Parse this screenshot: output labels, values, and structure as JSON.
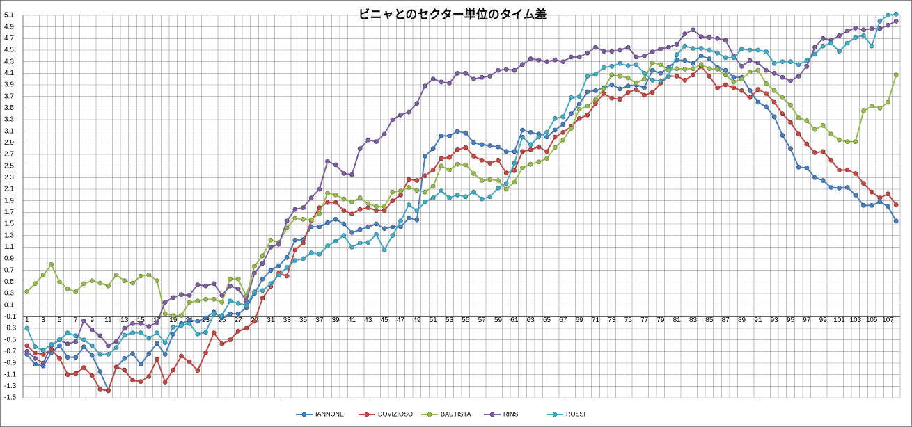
{
  "chart_data": {
    "type": "line",
    "title": "ビニャとのセクター単位のタイム差",
    "categories": [
      "1",
      null,
      "3",
      null,
      "5",
      null,
      "7",
      null,
      "9",
      null,
      "11",
      null,
      "13",
      null,
      "15",
      null,
      "17",
      null,
      "19",
      null,
      "21",
      null,
      "23",
      null,
      "25",
      null,
      "27",
      null,
      "29",
      null,
      "31",
      null,
      "33",
      null,
      "35",
      null,
      "37",
      null,
      "39",
      null,
      "41",
      null,
      "43",
      null,
      "45",
      null,
      "47",
      null,
      "49",
      null,
      "51",
      null,
      "53",
      null,
      "55",
      null,
      "57",
      null,
      "59",
      null,
      "61",
      null,
      "63",
      null,
      "65",
      null,
      "67",
      null,
      "69",
      null,
      "71",
      null,
      "73",
      null,
      "75",
      null,
      "77",
      null,
      "79",
      null,
      "81",
      null,
      "83",
      null,
      "85",
      null,
      "87",
      null,
      "89",
      null,
      "91",
      null,
      "93",
      null,
      "95",
      null,
      "97",
      null,
      "99",
      null,
      "101",
      null,
      "103",
      null,
      "105",
      null,
      "107",
      null
    ],
    "series": [
      {
        "name": "IANNONE",
        "color": "#4a7ebb",
        "values": [
          -0.75,
          -0.92,
          -0.95,
          -0.72,
          -0.6,
          -0.8,
          -0.8,
          -0.62,
          -0.77,
          -1.05,
          -1.37,
          -0.97,
          -0.82,
          -0.74,
          -0.92,
          -0.74,
          -0.56,
          -0.75,
          -0.4,
          -0.22,
          -0.16,
          -0.18,
          -0.12,
          -0.02,
          -0.12,
          -0.05,
          -0.05,
          0.05,
          0.3,
          0.55,
          0.7,
          0.78,
          0.92,
          1.22,
          1.23,
          1.45,
          1.45,
          1.52,
          1.58,
          1.5,
          1.35,
          1.4,
          1.45,
          1.5,
          1.42,
          1.45,
          1.45,
          1.6,
          1.57,
          2.67,
          2.8,
          3.02,
          3.02,
          3.1,
          3.07,
          2.9,
          2.87,
          2.85,
          2.83,
          2.75,
          2.75,
          3.12,
          3.08,
          3.05,
          3.0,
          3.12,
          3.22,
          3.4,
          3.57,
          3.78,
          3.8,
          3.85,
          3.9,
          3.83,
          3.88,
          3.9,
          3.85,
          4.15,
          4.1,
          4.2,
          4.33,
          4.32,
          4.27,
          4.4,
          4.35,
          4.2,
          4.15,
          4.03,
          4.03,
          3.8,
          3.6,
          3.52,
          3.35,
          3.03,
          2.8,
          2.48,
          2.47,
          2.3,
          2.25,
          2.13,
          2.12,
          2.13,
          2.0,
          1.82,
          1.82,
          1.88,
          1.8,
          1.55
        ]
      },
      {
        "name": "DOVIZIOSO",
        "color": "#be4b48",
        "values": [
          -0.6,
          -0.73,
          -0.75,
          -0.67,
          -0.82,
          -1.1,
          -1.08,
          -0.98,
          -1.12,
          -1.35,
          -1.38,
          -0.97,
          -1.02,
          -1.2,
          -1.22,
          -1.13,
          -0.83,
          -1.23,
          -1.02,
          -0.78,
          -0.88,
          -1.03,
          -0.72,
          -0.38,
          -0.57,
          -0.5,
          -0.35,
          -0.3,
          -0.18,
          0.22,
          0.42,
          0.65,
          0.6,
          1.05,
          1.17,
          1.55,
          1.78,
          1.87,
          1.87,
          1.73,
          1.67,
          1.75,
          1.78,
          1.73,
          1.73,
          1.9,
          2.0,
          2.27,
          2.25,
          2.33,
          2.43,
          2.63,
          2.65,
          2.78,
          2.82,
          2.67,
          2.6,
          2.55,
          2.6,
          2.38,
          2.42,
          2.75,
          2.78,
          2.83,
          2.75,
          3.0,
          3.08,
          3.18,
          3.32,
          3.38,
          3.58,
          3.75,
          3.67,
          3.65,
          3.77,
          3.82,
          3.72,
          3.77,
          3.93,
          4.05,
          4.05,
          3.98,
          4.07,
          4.22,
          4.05,
          3.85,
          3.9,
          3.85,
          3.8,
          3.68,
          3.82,
          3.75,
          3.6,
          3.4,
          3.25,
          3.05,
          2.88,
          2.73,
          2.75,
          2.6,
          2.43,
          2.43,
          2.37,
          2.2,
          2.05,
          1.95,
          2.02,
          1.83
        ]
      },
      {
        "name": "BAUTISTA",
        "color": "#98b954",
        "values": [
          0.33,
          0.47,
          0.62,
          0.8,
          0.5,
          0.38,
          0.33,
          0.47,
          0.52,
          0.48,
          0.43,
          0.62,
          0.52,
          0.48,
          0.6,
          0.62,
          0.52,
          -0.05,
          -0.08,
          -0.08,
          0.15,
          0.17,
          0.2,
          0.2,
          0.15,
          0.55,
          0.55,
          0.25,
          0.77,
          0.95,
          1.22,
          1.18,
          1.43,
          1.6,
          1.58,
          1.57,
          1.68,
          2.03,
          2.0,
          1.93,
          1.88,
          1.95,
          1.85,
          1.8,
          1.8,
          2.05,
          2.07,
          2.13,
          2.08,
          2.05,
          2.15,
          2.5,
          2.43,
          2.53,
          2.52,
          2.37,
          2.25,
          2.27,
          2.25,
          2.1,
          2.22,
          2.47,
          2.53,
          2.57,
          2.63,
          2.82,
          2.95,
          3.15,
          3.48,
          3.53,
          3.65,
          3.83,
          4.07,
          4.05,
          4.02,
          3.93,
          4.0,
          4.28,
          4.25,
          4.15,
          4.18,
          4.17,
          4.18,
          4.25,
          4.18,
          4.17,
          4.07,
          3.95,
          4.0,
          4.12,
          4.15,
          3.92,
          3.8,
          3.68,
          3.55,
          3.33,
          3.28,
          3.13,
          3.2,
          3.05,
          2.95,
          2.92,
          2.92,
          3.45,
          3.53,
          3.5,
          3.6,
          4.07
        ]
      },
      {
        "name": "RINS",
        "color": "#7d60a0",
        "values": [
          -0.7,
          -0.82,
          -0.9,
          -0.6,
          -0.5,
          -0.57,
          -0.53,
          -0.17,
          -0.33,
          -0.43,
          -0.6,
          -0.53,
          -0.3,
          -0.22,
          -0.22,
          -0.27,
          -0.2,
          0.15,
          0.23,
          0.28,
          0.27,
          0.45,
          0.43,
          0.47,
          0.27,
          0.43,
          0.38,
          0.17,
          0.65,
          0.82,
          1.1,
          1.15,
          1.55,
          1.75,
          1.78,
          1.95,
          2.1,
          2.58,
          2.52,
          2.37,
          2.35,
          2.8,
          2.95,
          2.92,
          3.05,
          3.3,
          3.38,
          3.43,
          3.58,
          3.88,
          4.0,
          3.95,
          3.93,
          4.1,
          4.1,
          4.0,
          4.03,
          4.05,
          4.15,
          4.17,
          4.15,
          4.25,
          4.35,
          4.33,
          4.3,
          4.33,
          4.3,
          4.38,
          4.38,
          4.45,
          4.55,
          4.48,
          4.48,
          4.5,
          4.55,
          4.38,
          4.4,
          4.47,
          4.52,
          4.55,
          4.6,
          4.78,
          4.85,
          4.73,
          4.72,
          4.7,
          4.67,
          4.4,
          4.22,
          4.32,
          4.28,
          4.15,
          4.1,
          4.03,
          3.97,
          4.05,
          4.22,
          4.55,
          4.7,
          4.67,
          4.75,
          4.83,
          4.88,
          4.85,
          4.87,
          4.87,
          4.93,
          5.0
        ]
      },
      {
        "name": "ROSSI",
        "color": "#46aac5",
        "values": [
          -0.3,
          -0.62,
          -0.68,
          -0.58,
          -0.5,
          -0.38,
          -0.43,
          -0.5,
          -0.6,
          -0.75,
          -0.75,
          -0.63,
          -0.42,
          -0.38,
          -0.38,
          -0.47,
          -0.38,
          -0.55,
          -0.28,
          -0.25,
          -0.22,
          -0.4,
          -0.37,
          -0.05,
          -0.08,
          0.17,
          0.13,
          0.1,
          0.33,
          0.35,
          0.47,
          0.62,
          0.75,
          0.87,
          0.9,
          1.0,
          0.98,
          1.12,
          1.2,
          1.3,
          1.1,
          1.17,
          1.18,
          1.32,
          1.05,
          1.3,
          1.55,
          1.83,
          1.73,
          1.88,
          1.95,
          2.07,
          1.95,
          2.0,
          1.97,
          2.05,
          1.93,
          1.97,
          2.12,
          2.2,
          2.55,
          3.0,
          2.87,
          3.0,
          3.08,
          3.32,
          3.35,
          3.68,
          3.7,
          4.05,
          4.08,
          4.2,
          4.22,
          4.27,
          4.23,
          4.25,
          4.1,
          3.98,
          3.97,
          4.05,
          4.42,
          4.57,
          4.53,
          4.53,
          4.5,
          4.45,
          4.37,
          4.37,
          4.52,
          4.5,
          4.5,
          4.47,
          4.27,
          4.3,
          4.3,
          4.25,
          4.32,
          4.43,
          4.57,
          4.62,
          4.48,
          4.62,
          4.72,
          4.75,
          4.57,
          5.0,
          5.1,
          5.12
        ]
      }
    ],
    "ylim": [
      -1.5,
      5.1
    ],
    "yticks": [
      -1.5,
      -1.3,
      -1.1,
      -0.9,
      -0.7,
      -0.5,
      -0.3,
      -0.1,
      0.1,
      0.3,
      0.5,
      0.7,
      0.9,
      1.1,
      1.3,
      1.5,
      1.7,
      1.9,
      2.1,
      2.3,
      2.5,
      2.7,
      2.9,
      3.1,
      3.3,
      3.5,
      3.7,
      3.9,
      4.1,
      4.3,
      4.5,
      4.7,
      4.9,
      5.1
    ],
    "x_axis_at": -0.1,
    "grid": true,
    "legend": "bottom"
  }
}
